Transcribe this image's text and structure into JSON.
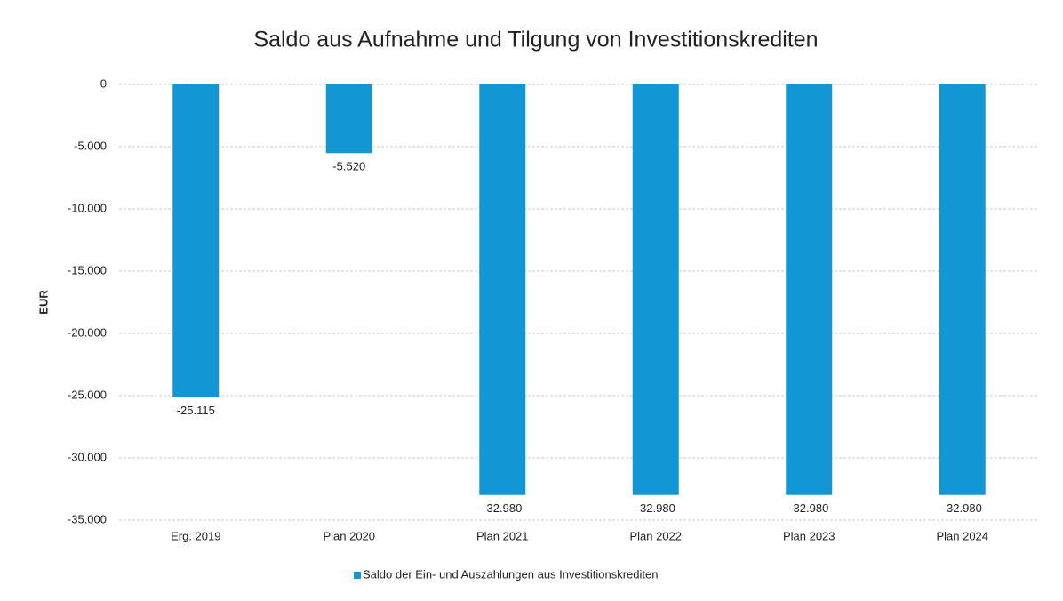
{
  "chart_data": {
    "type": "bar",
    "title": "Saldo aus Aufnahme und Tilgung von Investitionskrediten",
    "y_label": "EUR",
    "categories": [
      "Erg. 2019",
      "Plan 2020",
      "Plan 2021",
      "Plan 2022",
      "Plan 2023",
      "Plan 2024"
    ],
    "series": [
      {
        "name": "Saldo der Ein- und Auszahlungen aus Investitionskrediten",
        "color": "#1296d4",
        "values": [
          -25115,
          -5520,
          -32980,
          -32980,
          -32980,
          -32980
        ],
        "value_labels": [
          "-25.115",
          "-5.520",
          "-32.980",
          "-32.980",
          "-32.980",
          "-32.980"
        ]
      }
    ],
    "ylim": [
      -35000,
      0
    ],
    "yticks": [
      0,
      {
        "value": -5000,
        "label": "-5.000"
      },
      {
        "value": -10000,
        "label": "-10.000"
      },
      {
        "value": -15000,
        "label": "-15.000"
      },
      {
        "value": -20000,
        "label": "-20.000"
      },
      {
        "value": -25000,
        "label": "-25.000"
      },
      {
        "value": -30000,
        "label": "-30.000"
      },
      {
        "value": -35000,
        "label": "-35.000"
      }
    ],
    "grid": true,
    "legend": "bottom"
  }
}
